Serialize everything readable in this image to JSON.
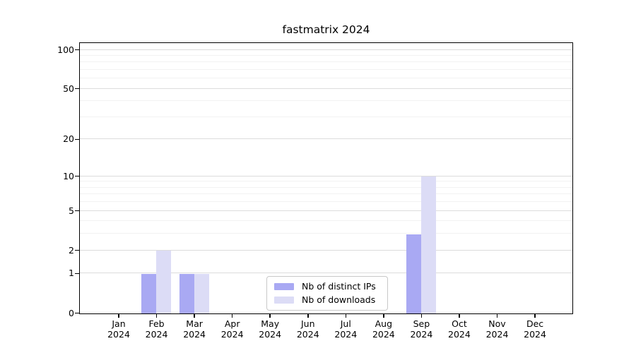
{
  "title": "fastmatrix 2024",
  "colors": {
    "bar_distinct_ips": "#a9a9f3",
    "bar_downloads": "#dcdcf6",
    "grid_major": "#dcdcdc",
    "grid_minor": "#f2f2f2",
    "axis": "#000000",
    "legend_border": "#c8c8c8",
    "background": "#ffffff",
    "text": "#000000"
  },
  "chart_data": {
    "type": "bar",
    "title": "fastmatrix 2024",
    "categories": [
      "Jan 2024",
      "Feb 2024",
      "Mar 2024",
      "Apr 2024",
      "May 2024",
      "Jun 2024",
      "Jul 2024",
      "Aug 2024",
      "Sep 2024",
      "Oct 2024",
      "Nov 2024",
      "Dec 2024"
    ],
    "series": [
      {
        "name": "Nb of distinct IPs",
        "color": "#a9a9f3",
        "values": [
          0,
          1,
          1,
          0,
          0,
          0,
          0,
          0,
          3,
          0,
          0,
          0
        ]
      },
      {
        "name": "Nb of downloads",
        "color": "#dcdcf6",
        "values": [
          0,
          2,
          1,
          0,
          0,
          0,
          0,
          0,
          10,
          0,
          0,
          0
        ]
      }
    ],
    "xlabel": "",
    "ylabel": "",
    "y_axis": {
      "scale": "log1p",
      "major_ticks": [
        0,
        1,
        2,
        5,
        10,
        20,
        50,
        100
      ],
      "minor_ticks": [
        3,
        4,
        6,
        7,
        8,
        9,
        30,
        40,
        60,
        70,
        80,
        90
      ],
      "ylim": [
        0,
        100
      ]
    },
    "grid": true,
    "legend_position": "inside-bottom-center"
  }
}
